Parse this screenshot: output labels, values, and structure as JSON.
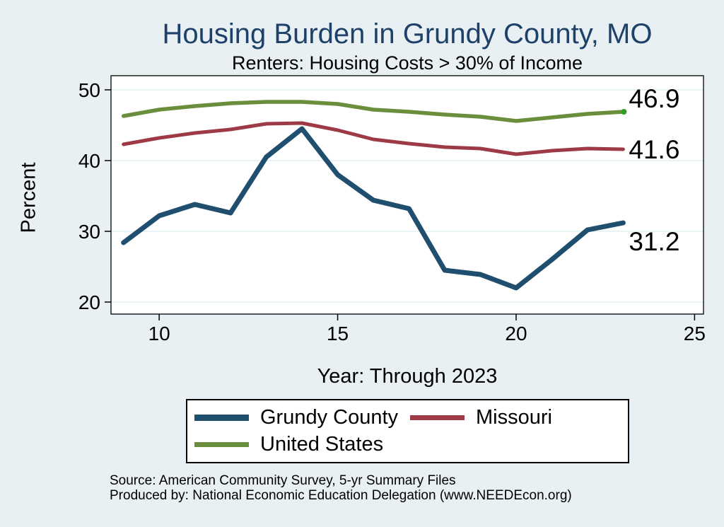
{
  "chart_data": {
    "type": "line",
    "title": "Housing Burden in Grundy County, MO",
    "subtitle": "Renters: Housing Costs > 30% of Income",
    "xlabel": "Year: Through 2023",
    "ylabel": "Percent",
    "x": [
      9,
      10,
      11,
      12,
      13,
      14,
      15,
      16,
      17,
      18,
      19,
      20,
      21,
      22,
      23
    ],
    "x_ticks": [
      10,
      15,
      20,
      25
    ],
    "y_ticks": [
      20,
      30,
      40,
      50
    ],
    "xlim": [
      8.65,
      25.25
    ],
    "ylim": [
      18.3,
      52
    ],
    "grid": true,
    "legend_position": "bottom",
    "series": [
      {
        "id": "grundy-county",
        "name": "Grundy County",
        "color": "#1f4e6e",
        "width": 7,
        "values": [
          28.4,
          32.2,
          33.8,
          32.6,
          40.5,
          44.5,
          38.0,
          34.4,
          33.2,
          24.5,
          23.9,
          22.0,
          26.0,
          30.2,
          31.2
        ],
        "end_label": "31.2",
        "end_label_dy": 26
      },
      {
        "id": "missouri",
        "name": "Missouri",
        "color": "#9d3a46",
        "width": 5,
        "values": [
          42.3,
          43.2,
          43.9,
          44.4,
          45.2,
          45.3,
          44.3,
          43.0,
          42.4,
          41.9,
          41.7,
          40.9,
          41.4,
          41.7,
          41.6
        ],
        "end_label": "41.6",
        "end_label_dy": 0
      },
      {
        "id": "united-states",
        "name": "United States",
        "color": "#6a8e3b",
        "width": 5.5,
        "values": [
          46.3,
          47.2,
          47.7,
          48.1,
          48.3,
          48.3,
          48.0,
          47.2,
          46.9,
          46.5,
          46.2,
          45.6,
          46.1,
          46.6,
          46.9
        ],
        "end_label": "46.9",
        "end_label_dy": -19,
        "end_marker_color": "#2f9e25"
      }
    ],
    "colors": {
      "background": "#e9f0f3",
      "plot_background": "#ffffff",
      "grid": "#e2edf0",
      "axis": "#000000",
      "title": "#1d4168"
    }
  },
  "notes": {
    "source": "Source: American Community Survey, 5-yr Summary Files",
    "producer": "Produced by: National Economic Education Delegation (www.NEEDEcon.org)"
  }
}
